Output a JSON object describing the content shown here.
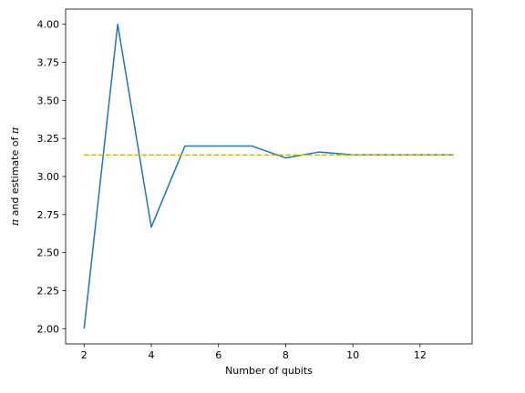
{
  "chart_data": {
    "type": "line",
    "title": "",
    "xlabel": "Number of qubits",
    "ylabel": {
      "symbol": "π",
      "middle": " and estimate of "
    },
    "xlim": [
      1.45,
      13.55
    ],
    "ylim": [
      1.9,
      4.1
    ],
    "xticks": [
      2,
      4,
      6,
      8,
      10,
      12
    ],
    "yticks": [
      2.0,
      2.25,
      2.5,
      2.75,
      3.0,
      3.25,
      3.5,
      3.75,
      4.0
    ],
    "grid": false,
    "legend": "none",
    "series": [
      {
        "color": "#1f77b4",
        "style": "solid",
        "x": [
          2,
          3,
          4,
          5,
          6,
          7,
          8,
          9,
          10,
          11,
          12,
          13
        ],
        "y": [
          2.0,
          4.0,
          2.667,
          3.2,
          3.2,
          3.2,
          3.122,
          3.161,
          3.142,
          3.142,
          3.142,
          3.142
        ]
      },
      {
        "color": "#d4b500",
        "style": "dashed",
        "x": [
          2,
          13
        ],
        "y": [
          3.14159,
          3.14159
        ]
      }
    ]
  }
}
